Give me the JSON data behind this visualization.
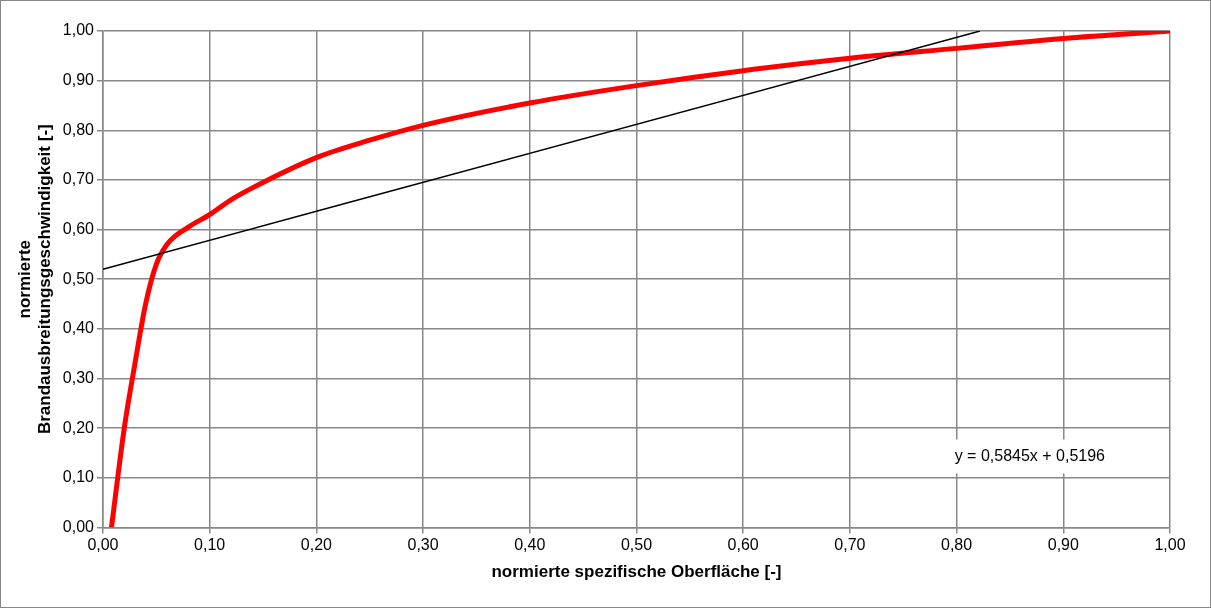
{
  "chart_data": {
    "type": "line",
    "xlabel": "normierte spezifische Oberfläche [-]",
    "ylabel": "normierte Brandausbreitungsgeschwindigkeit [-]",
    "xlim": [
      0,
      1
    ],
    "ylim": [
      0,
      1
    ],
    "xticks": [
      {
        "value": 0,
        "label": "0,00"
      },
      {
        "value": 0.1,
        "label": "0,10"
      },
      {
        "value": 0.2,
        "label": "0,20"
      },
      {
        "value": 0.3,
        "label": "0,30"
      },
      {
        "value": 0.4,
        "label": "0,40"
      },
      {
        "value": 0.5,
        "label": "0,50"
      },
      {
        "value": 0.6,
        "label": "0,60"
      },
      {
        "value": 0.7,
        "label": "0,70"
      },
      {
        "value": 0.8,
        "label": "0,80"
      },
      {
        "value": 0.9,
        "label": "0,90"
      },
      {
        "value": 1,
        "label": "1,00"
      }
    ],
    "yticks": [
      {
        "value": 0,
        "label": "0,00"
      },
      {
        "value": 0.1,
        "label": "0,10"
      },
      {
        "value": 0.2,
        "label": "0,20"
      },
      {
        "value": 0.3,
        "label": "0,30"
      },
      {
        "value": 0.4,
        "label": "0,40"
      },
      {
        "value": 0.5,
        "label": "0,50"
      },
      {
        "value": 0.6,
        "label": "0,60"
      },
      {
        "value": 0.7,
        "label": "0,70"
      },
      {
        "value": 0.8,
        "label": "0,80"
      },
      {
        "value": 0.9,
        "label": "0,90"
      },
      {
        "value": 1,
        "label": "1,00"
      }
    ],
    "grid": true,
    "legend": false,
    "marker": "none",
    "series": [
      {
        "color": "#ff0000",
        "x": [
          0.008,
          0.02,
          0.03,
          0.04,
          0.05,
          0.06,
          0.08,
          0.1,
          0.12,
          0.15,
          0.2,
          0.25,
          0.3,
          0.4,
          0.5,
          0.6,
          0.7,
          0.8,
          0.9,
          1.0
        ],
        "values": [
          0,
          0.2,
          0.33,
          0.45,
          0.53,
          0.57,
          0.605,
          0.63,
          0.66,
          0.695,
          0.745,
          0.78,
          0.81,
          0.855,
          0.89,
          0.92,
          0.945,
          0.965,
          0.985,
          1.0
        ]
      },
      {
        "type": "line",
        "color": "#000000",
        "x": [
          0,
          0.822
        ],
        "values": [
          0.52,
          1.0
        ]
      }
    ],
    "annotations": [
      "y = 0,5845x + 0,5196"
    ]
  }
}
